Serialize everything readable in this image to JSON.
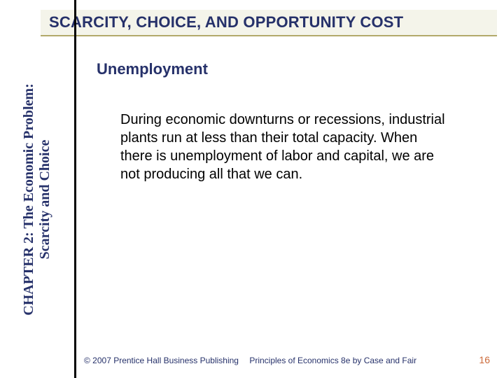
{
  "colors": {
    "title_text": "#26316a",
    "title_bg": "#f4f4ea",
    "title_underline": "#b2a96a",
    "body_text": "#000000",
    "sidebar_text": "#26316a",
    "footer_text": "#26316a",
    "pagenum": "#cc6a3a",
    "vline": "#000000",
    "background": "#ffffff"
  },
  "typography": {
    "title_fontsize": 22,
    "title_weight": "bold",
    "subhead_fontsize": 22,
    "subhead_weight": "bold",
    "body_fontsize": 20,
    "body_lineheight": 1.3,
    "sidebar_fontsize": 20,
    "sidebar_family": "Times New Roman",
    "footer_fontsize": 12,
    "pagenum_fontsize": 14
  },
  "title": "SCARCITY, CHOICE, AND OPPORTUNITY COST",
  "sidebar": {
    "line1": "CHAPTER 2: The Economic Problem:",
    "line2": "Scarcity and Choice"
  },
  "subhead": "Unemployment",
  "body": "During economic downturns or recessions, industrial plants run at less than their total capacity. When there is unemployment of labor and capital, we are not producing all that we can.",
  "footer": {
    "copyright": "© 2007 Prentice Hall Business Publishing",
    "source": "Principles of Economics 8e by Case and Fair",
    "page": "16"
  }
}
